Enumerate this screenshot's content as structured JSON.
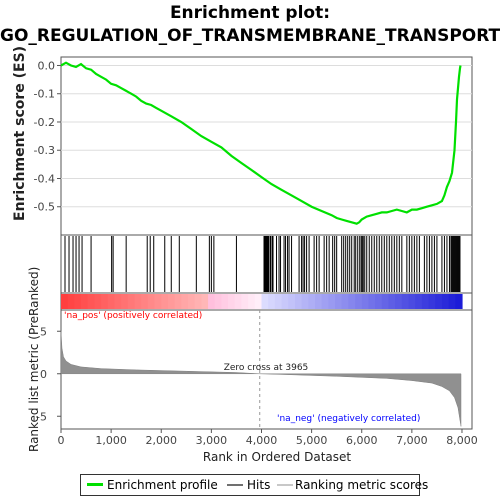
{
  "title_line1": "Enrichment plot:",
  "title_line2": "GO_REGULATION_OF_TRANSMEMBRANE_TRANSPORT",
  "chart_data": [
    {
      "type": "line",
      "name": "enrichment-profile",
      "ylabel": "Enrichment score (ES)",
      "xlim": [
        0,
        8200
      ],
      "ylim": [
        -0.6,
        0.03
      ],
      "yticks": [
        "0.0",
        "-0.1",
        "-0.2",
        "-0.3",
        "-0.4",
        "-0.5"
      ],
      "ytick_values": [
        0.0,
        -0.1,
        -0.2,
        -0.3,
        -0.4,
        -0.5
      ],
      "color": "#00e000",
      "x": [
        0,
        100,
        200,
        300,
        400,
        500,
        600,
        700,
        800,
        900,
        1000,
        1100,
        1200,
        1300,
        1400,
        1500,
        1600,
        1700,
        1800,
        1900,
        2000,
        2200,
        2400,
        2600,
        2800,
        3000,
        3200,
        3400,
        3600,
        3800,
        4000,
        4200,
        4400,
        4600,
        4800,
        5000,
        5200,
        5400,
        5500,
        5600,
        5700,
        5800,
        5900,
        5950,
        6000,
        6100,
        6200,
        6300,
        6400,
        6500,
        6600,
        6700,
        6800,
        6900,
        7000,
        7100,
        7200,
        7300,
        7400,
        7500,
        7600,
        7650,
        7700,
        7750,
        7800,
        7850,
        7880,
        7900,
        7920,
        7940,
        7960,
        7970
      ],
      "y": [
        0.0,
        0.01,
        0.0,
        -0.005,
        0.005,
        -0.01,
        -0.015,
        -0.03,
        -0.04,
        -0.05,
        -0.065,
        -0.07,
        -0.08,
        -0.09,
        -0.1,
        -0.11,
        -0.125,
        -0.135,
        -0.14,
        -0.15,
        -0.16,
        -0.18,
        -0.2,
        -0.225,
        -0.25,
        -0.27,
        -0.29,
        -0.32,
        -0.345,
        -0.37,
        -0.395,
        -0.42,
        -0.44,
        -0.46,
        -0.48,
        -0.5,
        -0.515,
        -0.53,
        -0.54,
        -0.545,
        -0.55,
        -0.555,
        -0.56,
        -0.555,
        -0.545,
        -0.535,
        -0.53,
        -0.525,
        -0.52,
        -0.52,
        -0.515,
        -0.51,
        -0.515,
        -0.52,
        -0.51,
        -0.51,
        -0.505,
        -0.5,
        -0.495,
        -0.49,
        -0.48,
        -0.46,
        -0.43,
        -0.41,
        -0.38,
        -0.3,
        -0.2,
        -0.12,
        -0.08,
        -0.04,
        -0.01,
        0.0
      ]
    },
    {
      "type": "bar",
      "name": "hits",
      "xlim": [
        0,
        8200
      ],
      "hit_positions": [
        80,
        160,
        240,
        300,
        360,
        420,
        600,
        1010,
        1040,
        1300,
        1720,
        1780,
        1850,
        2070,
        2200,
        2360,
        2700,
        2960,
        3000,
        3050,
        3500,
        4050,
        4070,
        4090,
        4110,
        4130,
        4150,
        4180,
        4210,
        4230,
        4300,
        4350,
        4380,
        4450,
        4480,
        4520,
        4550,
        4600,
        4750,
        4800,
        4830,
        4860,
        4900,
        4950,
        5050,
        5100,
        5150,
        5250,
        5300,
        5350,
        5420,
        5460,
        5500,
        5600,
        5640,
        5680,
        5720,
        5760,
        5800,
        5850,
        5880,
        5920,
        5960,
        5990,
        6010,
        6030,
        6060,
        6100,
        6150,
        6200,
        6250,
        6300,
        6350,
        6400,
        6450,
        6500,
        6550,
        6600,
        6650,
        6700,
        6750,
        6800,
        6900,
        6950,
        7000,
        7050,
        7100,
        7150,
        7250,
        7300,
        7350,
        7400,
        7450,
        7500,
        7600,
        7650,
        7700,
        7750,
        7780,
        7800,
        7820,
        7840,
        7860,
        7880,
        7900,
        7920,
        7940,
        7960
      ]
    },
    {
      "type": "area",
      "name": "ranked-list-metric",
      "ylabel": "Ranked list metric (PreRanked)",
      "xlabel": "Rank in Ordered Dataset",
      "xlim": [
        0,
        8200
      ],
      "ylim": [
        -6.5,
        7.5
      ],
      "yticks": [
        "5",
        "0",
        "-5"
      ],
      "ytick_values": [
        5,
        0,
        -5
      ],
      "xticks": [
        "0",
        "1,000",
        "2,000",
        "3,000",
        "4,000",
        "5,000",
        "6,000",
        "7,000",
        "8,000"
      ],
      "xtick_values": [
        0,
        1000,
        2000,
        3000,
        4000,
        5000,
        6000,
        7000,
        8000
      ],
      "x": [
        0,
        20,
        50,
        100,
        200,
        400,
        800,
        1500,
        2500,
        3500,
        3965,
        4500,
        5500,
        6500,
        7000,
        7400,
        7600,
        7750,
        7850,
        7920,
        7960,
        7980
      ],
      "y": [
        5.0,
        3.0,
        2.0,
        1.5,
        1.1,
        0.8,
        0.6,
        0.45,
        0.3,
        0.15,
        0.0,
        -0.1,
        -0.3,
        -0.55,
        -0.8,
        -1.1,
        -1.5,
        -2.0,
        -2.8,
        -4.0,
        -5.5,
        -6.2
      ],
      "zero_cross_label": "Zero cross at 3965",
      "zero_cross": 3965,
      "pos_label": "'na_pos' (positively correlated)",
      "neg_label": "'na_neg' (negatively correlated)"
    }
  ],
  "legend": {
    "items": [
      {
        "label": "Enrichment profile",
        "color": "#00e000"
      },
      {
        "label": "Hits",
        "color": "#707070"
      },
      {
        "label": "Ranking metric scores",
        "color": "#c8c8c8"
      }
    ]
  },
  "colors": {
    "es_line": "#00e000",
    "hits": "#000000",
    "pos_band": "#ff3030",
    "neg_band": "#2020d0",
    "pos_text": "#ff0000",
    "neg_text": "#0000ff",
    "metric_fill": "#909090",
    "frame": "#555555",
    "grid": "#dddddd"
  }
}
